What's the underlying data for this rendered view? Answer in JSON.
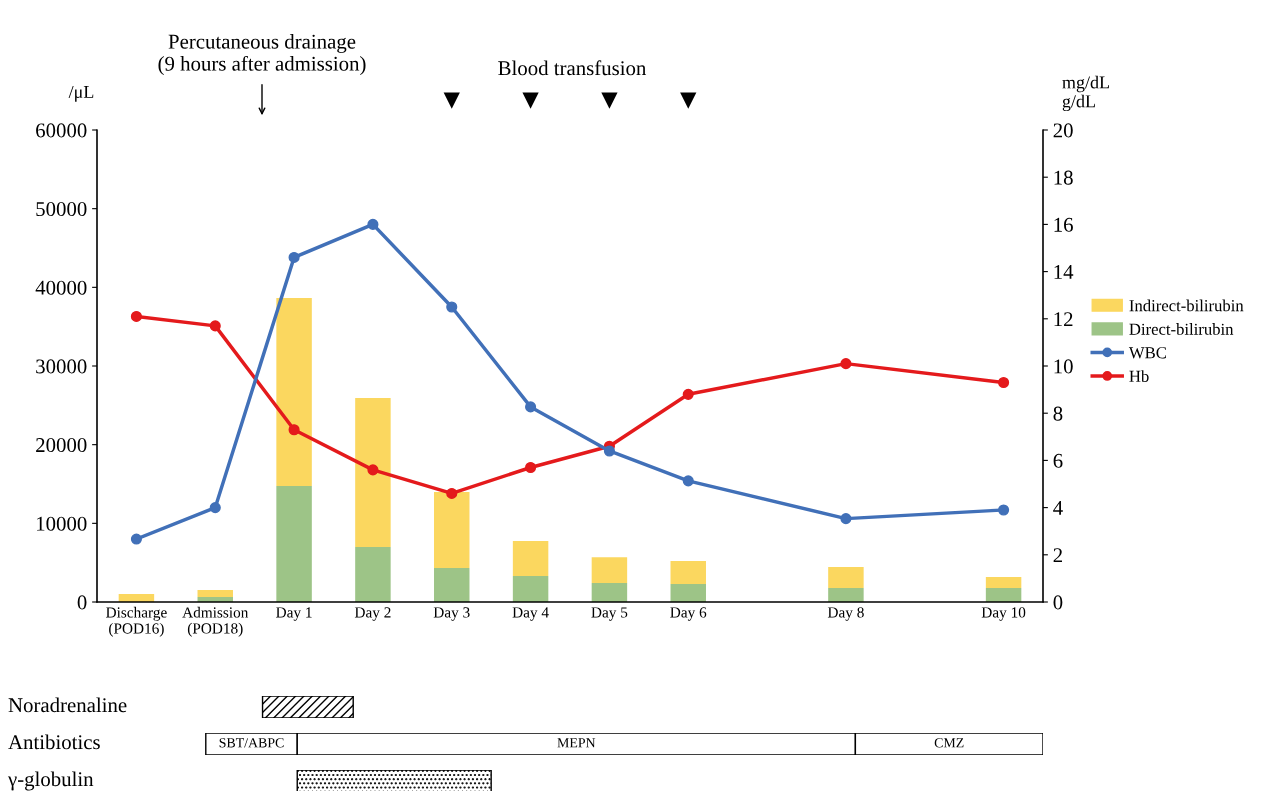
{
  "chart_data": [
    {
      "type": "bar",
      "stacked": true,
      "categories": [
        "Discharge\n(POD16)",
        "Admission\n(POD18)",
        "Day 1",
        "Day 2",
        "Day 3",
        "Day 4",
        "Day 5",
        "Day 6",
        null,
        "Day 8",
        null,
        "Day 10"
      ],
      "ylabel": "/μL",
      "y2label": "mg/dL\ng/dL",
      "ylim": [
        0,
        60000
      ],
      "yticks": [
        0,
        10000,
        20000,
        30000,
        40000,
        50000,
        60000
      ],
      "y2lim": [
        0,
        20
      ],
      "y2ticks": [
        0,
        2,
        4,
        6,
        8,
        10,
        12,
        14,
        16,
        18,
        20
      ],
      "legend": "right",
      "grid": false,
      "series": [
        {
          "name": "Direct-bilirubin",
          "color": "#9dc487",
          "axis": "y2",
          "values": [
            0,
            0.21,
            4.92,
            2.33,
            1.44,
            1.1,
            0.8,
            0.76,
            null,
            0.59,
            null,
            0.59
          ]
        },
        {
          "name": "Indirect-bilirubin",
          "color": "#fbd75f",
          "axis": "y2",
          "values": [
            0.34,
            0.3,
            7.96,
            6.31,
            3.22,
            1.48,
            1.1,
            0.98,
            null,
            0.89,
            null,
            0.47
          ]
        },
        {
          "name": "WBC",
          "type": "line",
          "marker": "circle",
          "color": "#4170b8",
          "values": [
            8000,
            12000,
            43800,
            48000,
            37500,
            24800,
            19200,
            15400,
            null,
            10600,
            null,
            11700
          ]
        },
        {
          "name": "Hb",
          "type": "line",
          "marker": "circle",
          "color": "#e41a1c",
          "axis": "y2",
          "values": [
            12.1,
            11.7,
            7.3,
            5.6,
            4.6,
            5.7,
            6.6,
            8.8,
            null,
            10.1,
            null,
            9.3
          ]
        }
      ],
      "annotations": [
        "Percutaneous drainage\n(9 hours after admission)",
        "Blood transfusion",
        "▼",
        "▼",
        "▼",
        "▼"
      ]
    },
    {
      "type": "other",
      "title": "Noradrenaline"
    },
    {
      "type": "other",
      "title": "Antibiotics",
      "annotations": [
        "SBT/ABPC",
        "MEPN",
        "CMZ"
      ]
    },
    {
      "type": "other",
      "title": "γ-globulin"
    }
  ]
}
